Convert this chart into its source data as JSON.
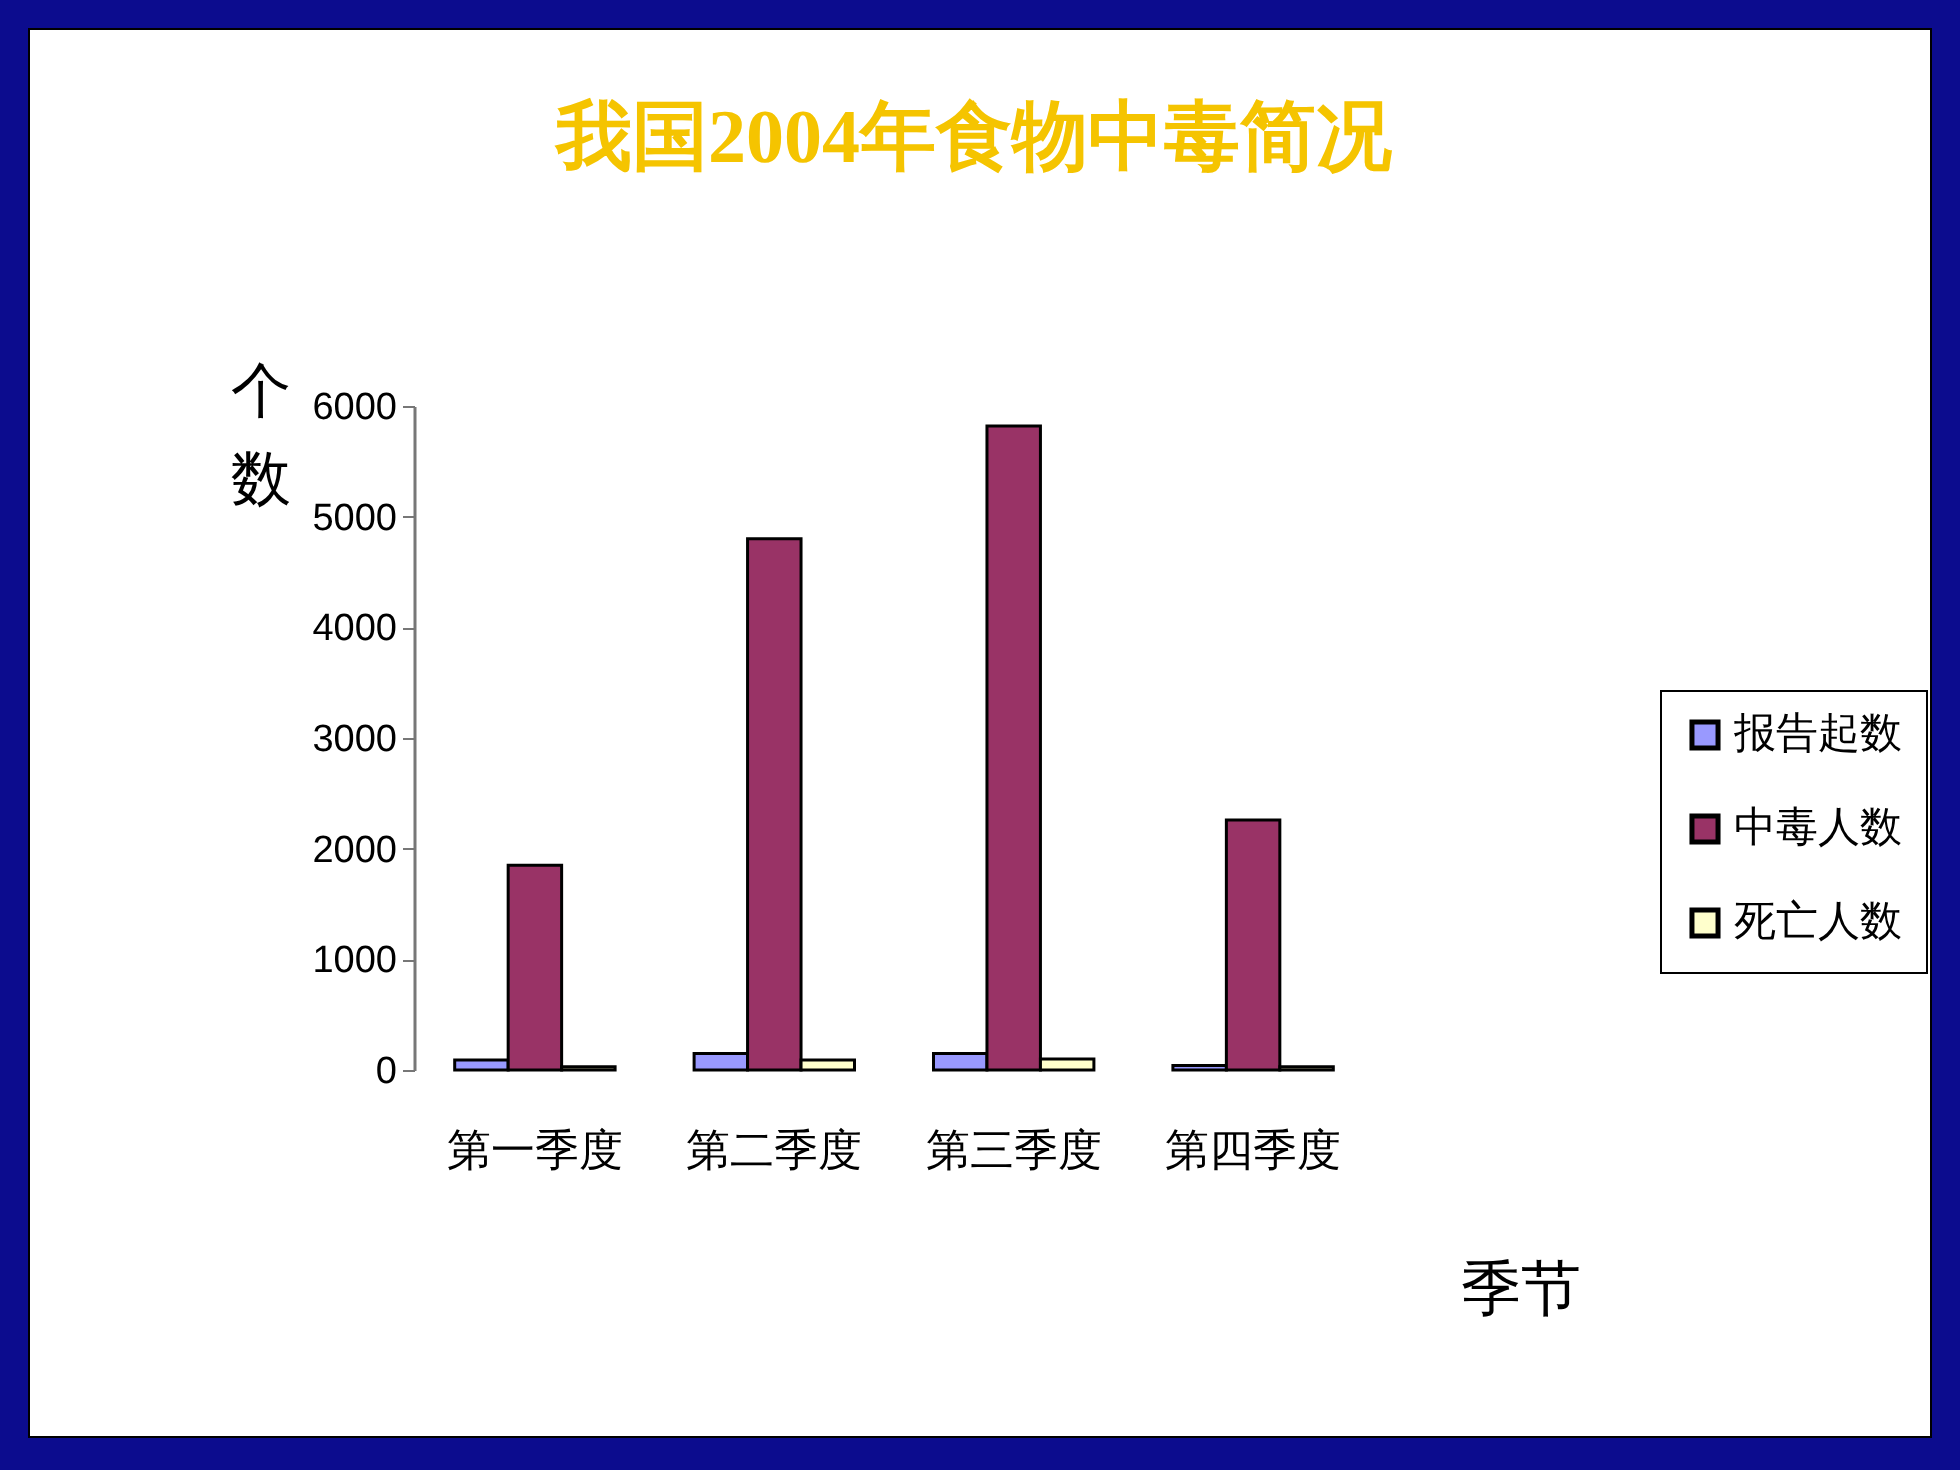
{
  "chart_data": {
    "type": "bar",
    "title": "我国2004年食物中毒简况",
    "xlabel": "季节",
    "ylabel": "个数",
    "categories": [
      "第一季度",
      "第二季度",
      "第三季度",
      "第四季度"
    ],
    "series": [
      {
        "name": "报告起数",
        "color": "#9999ff",
        "values": [
          90,
          150,
          150,
          40
        ]
      },
      {
        "name": "中毒人数",
        "color": "#993366",
        "values": [
          1850,
          4800,
          5820,
          2260
        ]
      },
      {
        "name": "死亡人数",
        "color": "#ffffcc",
        "values": [
          30,
          90,
          100,
          30
        ]
      }
    ],
    "ylim": [
      0,
      6000
    ],
    "yticks": [
      0,
      1000,
      2000,
      3000,
      4000,
      5000,
      6000
    ],
    "legend": "right"
  }
}
